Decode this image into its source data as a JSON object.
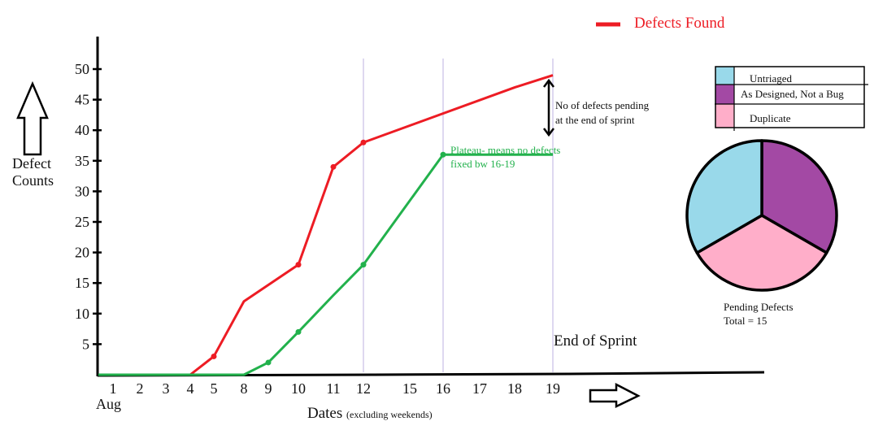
{
  "chart_data": {
    "type": "line",
    "title": "",
    "xlabel": "Dates",
    "xlabel_note": "(excluding weekends)",
    "x_month_label": "Aug",
    "ylabel": [
      "Defect",
      "Counts"
    ],
    "ylim": [
      0,
      50
    ],
    "yticks": [
      5,
      10,
      15,
      20,
      25,
      30,
      35,
      40,
      45,
      50
    ],
    "categories": [
      "1",
      "2",
      "3",
      "4",
      "5",
      "8",
      "9",
      "10",
      "11",
      "12",
      "15",
      "16",
      "17",
      "18",
      "19"
    ],
    "grid": false,
    "legend": {
      "placement": "top-right",
      "entries": [
        {
          "name": "Defects Found",
          "color": "#ed1c24"
        }
      ]
    },
    "series": [
      {
        "name": "Defects Found",
        "color": "#ed1c24",
        "points": [
          [
            "1",
            0
          ],
          [
            "4",
            0
          ],
          [
            "5",
            3
          ],
          [
            "8",
            12
          ],
          [
            "10",
            18
          ],
          [
            "11",
            34
          ],
          [
            "12",
            38
          ],
          [
            "18",
            47
          ],
          [
            "19",
            49
          ]
        ],
        "markers": [
          "5",
          "10",
          "11",
          "12"
        ]
      },
      {
        "color": "#22b14c",
        "points": [
          [
            "1",
            0
          ],
          [
            "8",
            0
          ],
          [
            "9",
            2
          ],
          [
            "10",
            7
          ],
          [
            "11",
            13
          ],
          [
            "12",
            18
          ],
          [
            "16",
            36
          ],
          [
            "19",
            36
          ]
        ],
        "markers": [
          "9",
          "10",
          "12",
          "16"
        ]
      }
    ],
    "reference_lines": [
      "12",
      "16",
      "19"
    ],
    "annotations": {
      "end_of_sprint": "End of Sprint",
      "pending": [
        "No of defects pending",
        "at the end of sprint"
      ],
      "plateau": [
        "Plateau- means no defects",
        "fixed bw 16-19"
      ],
      "plateau_color": "#22b14c"
    },
    "pie": {
      "type": "pie",
      "caption": [
        "Pending Defects",
        "Total = 15"
      ],
      "slices": [
        {
          "label": "Untriaged",
          "value": 5,
          "color": "#99d9ea"
        },
        {
          "label": "As Designed, Not a Bug",
          "value": 5,
          "color": "#a349a4"
        },
        {
          "label": "Duplicate",
          "value": 5,
          "color": "#ffaec9"
        }
      ]
    }
  }
}
